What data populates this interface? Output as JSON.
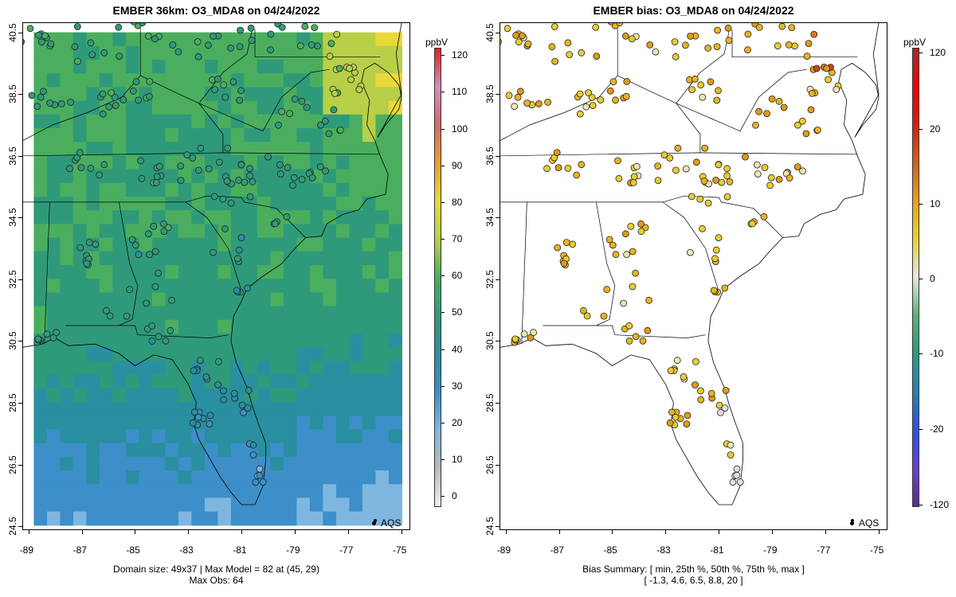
{
  "left_panel": {
    "title": "EMBER 36km: O3_MDA8 on 04/24/2022",
    "footer_line1": "Domain size: 49x37 | Max Model = 82 at (45, 29)",
    "footer_line2": "Max Obs: 64",
    "legend_label": "AQS",
    "colorbar_unit": "ppbV",
    "colorbar_ticks": [
      "120",
      "110",
      "100",
      "90",
      "80",
      "70",
      "60",
      "50",
      "40",
      "30",
      "20",
      "10",
      "0"
    ],
    "colorbar_range": [
      -3,
      122
    ],
    "colorbar_stops": [
      "#f0f0f0",
      "#b8b8b8",
      "#7fb6e0",
      "#3c8fc8",
      "#2a8fa0",
      "#2f9a7a",
      "#4aae5e",
      "#b8cf48",
      "#e8d838",
      "#e8a028",
      "#d86868",
      "#d490b8",
      "#e02020"
    ]
  },
  "right_panel": {
    "title": "EMBER bias: O3_MDA8 on 04/24/2022",
    "footer_line1": "Bias Summary: [ min, 25th %, 50th %, 75th %, max ]",
    "footer_line2": "[ -1.3,   4.6,   6.5,   8.8,   20 ]",
    "legend_label": "AQS",
    "colorbar_unit": "ppbV",
    "colorbar_ticks": [
      "120",
      "20",
      "10",
      "0",
      "-10",
      "-20",
      "-120"
    ],
    "colorbar_stops": [
      "#5b2d8e",
      "#6a3fd0",
      "#3050e0",
      "#2a80b0",
      "#2a9a80",
      "#5ab070",
      "#e6e6e6",
      "#e8d030",
      "#e8a020",
      "#d06020",
      "#d02010",
      "#f00000",
      "#a03030"
    ]
  },
  "axes": {
    "x_ticks": [
      "-89",
      "-87",
      "-85",
      "-83",
      "-81",
      "-79",
      "-77",
      "-75"
    ],
    "y_ticks": [
      "40.5",
      "38.5",
      "36.5",
      "34.5",
      "32.5",
      "30.5",
      "28.5",
      "26.5",
      "24.5"
    ],
    "lon_range": [
      -89.2,
      -74.7
    ],
    "lat_range": [
      24.4,
      40.8
    ]
  }
}
